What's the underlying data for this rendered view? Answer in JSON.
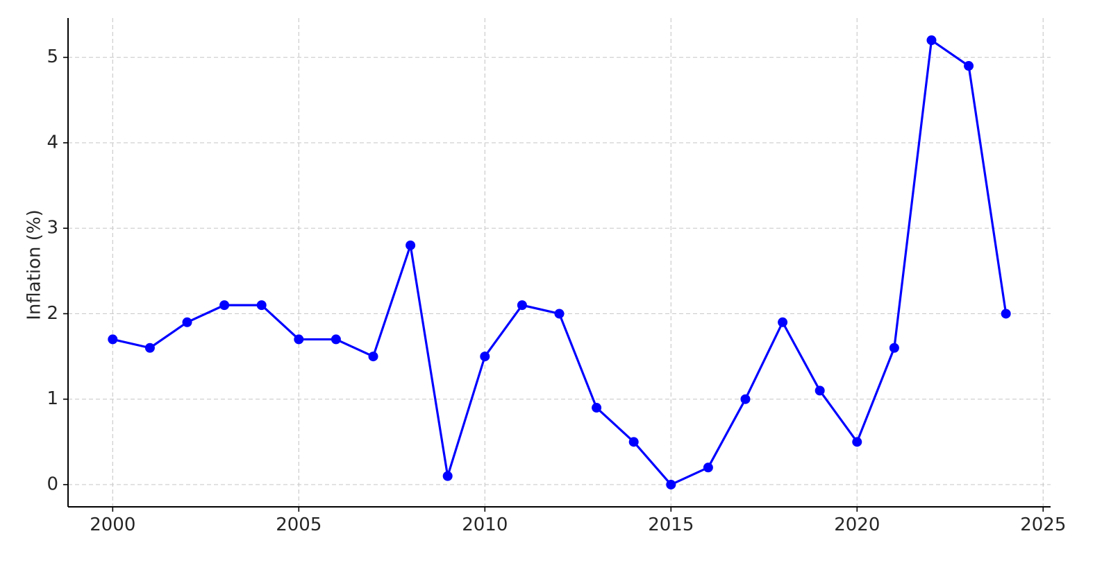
{
  "chart_data": {
    "type": "line",
    "title": "",
    "xlabel": "",
    "ylabel": "Inflation (%)",
    "x": [
      2000,
      2001,
      2002,
      2003,
      2004,
      2005,
      2006,
      2007,
      2008,
      2009,
      2010,
      2011,
      2012,
      2013,
      2014,
      2015,
      2016,
      2017,
      2018,
      2019,
      2020,
      2021,
      2022,
      2023,
      2024
    ],
    "series": [
      {
        "values": [
          1.7,
          1.6,
          1.9,
          2.1,
          2.1,
          1.7,
          1.7,
          1.5,
          2.8,
          0.1,
          1.5,
          2.1,
          2.0,
          0.9,
          0.5,
          0.0,
          0.2,
          1.0,
          1.9,
          1.1,
          0.5,
          1.6,
          5.2,
          4.9,
          2.0
        ],
        "color": "#0000ff",
        "marker": "circle"
      }
    ],
    "xlim": [
      1998.8,
      2025.2
    ],
    "ylim": [
      -0.26,
      5.46
    ],
    "xticks": [
      "2000",
      "2005",
      "2010",
      "2015",
      "2020",
      "2025"
    ],
    "yticks": [
      "0",
      "1",
      "2",
      "3",
      "4",
      "5"
    ],
    "grid": true,
    "grid_style": "dashed",
    "legend": "none"
  }
}
